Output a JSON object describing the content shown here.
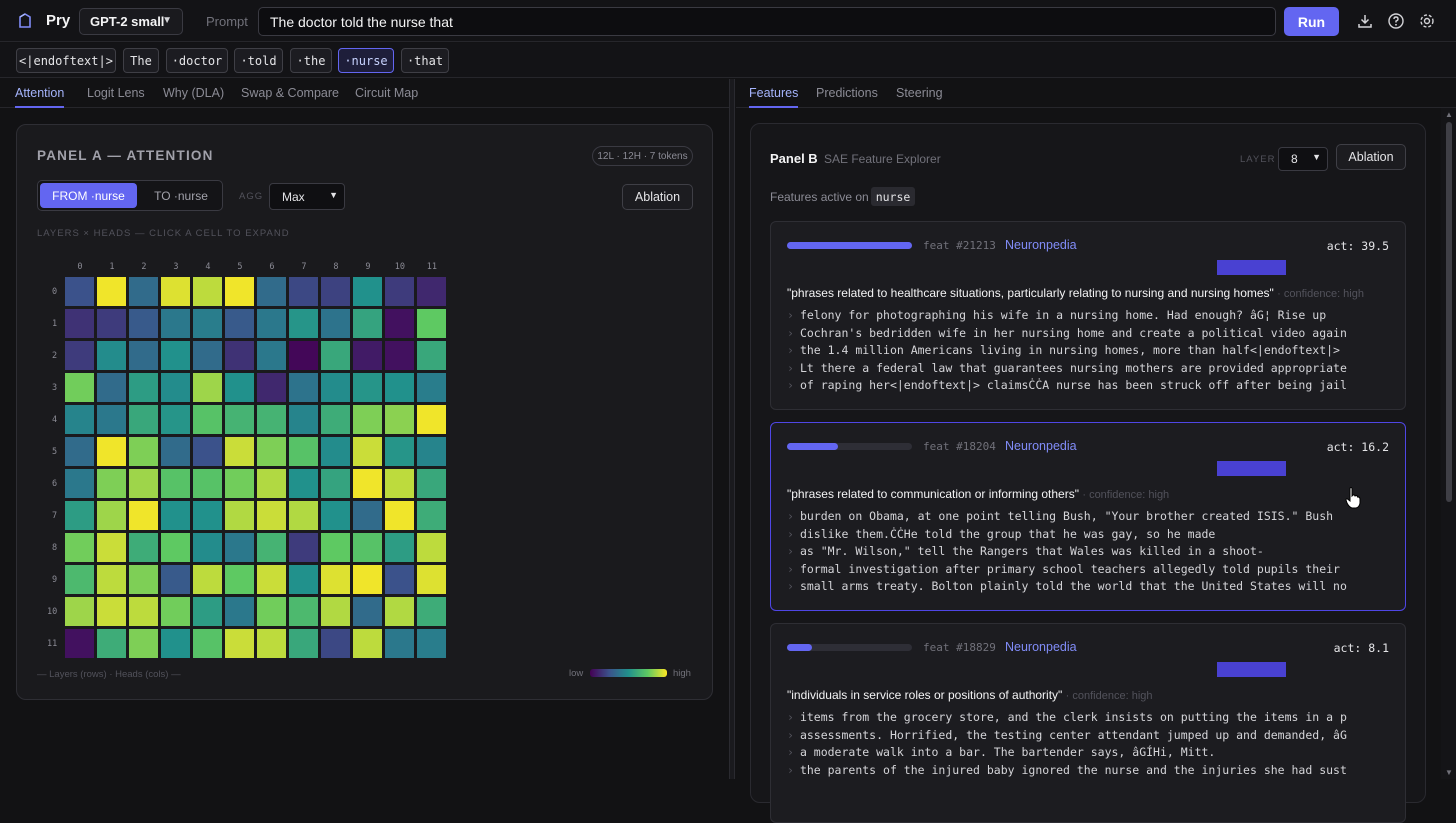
{
  "app": {
    "name": "Pry"
  },
  "topbar": {
    "model": "GPT-2 small",
    "prompt_label": "Prompt",
    "prompt_value": "The doctor told the nurse that",
    "run_label": "Run",
    "icons": [
      "download-icon",
      "help-icon",
      "settings-icon"
    ]
  },
  "tokens": [
    "<|endoftext|>",
    "The",
    "·doctor",
    "·told",
    "·the",
    "·nurse",
    "·that"
  ],
  "selected_token": "·nurse",
  "left_tabs": [
    "Attention",
    "Logit Lens",
    "Why (DLA)",
    "Swap & Compare",
    "Circuit Map"
  ],
  "right_tabs": [
    "Features",
    "Predictions",
    "Steering"
  ],
  "panel_a": {
    "title": "PANEL A — ATTENTION",
    "badge": "12L · 12H · 7 tokens",
    "from_label": "FROM ·nurse",
    "to_label": "TO ·nurse",
    "agg_label": "AGG",
    "agg_value": "Max",
    "ablation_label": "Ablation",
    "hint": "LAYERS × HEADS — CLICK A CELL TO EXPAND",
    "col_labels": [
      "0",
      "1",
      "2",
      "3",
      "4",
      "5",
      "6",
      "7",
      "8",
      "9",
      "10",
      "11"
    ],
    "row_labels": [
      "0",
      "1",
      "2",
      "3",
      "4",
      "5",
      "6",
      "7",
      "8",
      "9",
      "10",
      "11"
    ],
    "legend_axes": "— Layers (rows) · Heads (cols) —",
    "legend_low": "low",
    "legend_high": "high",
    "matrix": [
      [
        0.25,
        0.98,
        0.35,
        0.95,
        0.9,
        0.98,
        0.35,
        0.22,
        0.2,
        0.5,
        0.18,
        0.12
      ],
      [
        0.15,
        0.18,
        0.28,
        0.4,
        0.42,
        0.28,
        0.4,
        0.52,
        0.38,
        0.58,
        0.05,
        0.75
      ],
      [
        0.18,
        0.48,
        0.35,
        0.5,
        0.35,
        0.15,
        0.4,
        0.02,
        0.6,
        0.08,
        0.05,
        0.6
      ],
      [
        0.78,
        0.35,
        0.55,
        0.48,
        0.85,
        0.5,
        0.12,
        0.38,
        0.48,
        0.52,
        0.5,
        0.42
      ],
      [
        0.45,
        0.4,
        0.6,
        0.52,
        0.72,
        0.65,
        0.65,
        0.45,
        0.62,
        0.8,
        0.82,
        0.98
      ],
      [
        0.35,
        0.98,
        0.8,
        0.35,
        0.25,
        0.92,
        0.8,
        0.72,
        0.48,
        0.92,
        0.52,
        0.45
      ],
      [
        0.4,
        0.8,
        0.85,
        0.72,
        0.72,
        0.78,
        0.88,
        0.5,
        0.58,
        0.98,
        0.9,
        0.6
      ],
      [
        0.55,
        0.85,
        0.98,
        0.5,
        0.5,
        0.88,
        0.92,
        0.88,
        0.5,
        0.35,
        0.98,
        0.62
      ],
      [
        0.78,
        0.92,
        0.62,
        0.75,
        0.48,
        0.4,
        0.65,
        0.18,
        0.75,
        0.72,
        0.55,
        0.9
      ],
      [
        0.68,
        0.9,
        0.8,
        0.28,
        0.9,
        0.75,
        0.92,
        0.5,
        0.95,
        0.98,
        0.25,
        0.95
      ],
      [
        0.85,
        0.92,
        0.9,
        0.78,
        0.55,
        0.4,
        0.78,
        0.68,
        0.88,
        0.35,
        0.88,
        0.62
      ],
      [
        0.05,
        0.62,
        0.8,
        0.5,
        0.72,
        0.92,
        0.9,
        0.6,
        0.22,
        0.9,
        0.4,
        0.42
      ]
    ]
  },
  "panel_b": {
    "title": "Panel B",
    "subtitle": "SAE Feature Explorer",
    "layer_label": "LAYER",
    "layer_value": "8",
    "ablation_label": "Ablation",
    "active_on_label": "Features active on",
    "active_token": "nurse",
    "features": [
      {
        "id": "feat #21213",
        "link": "Neuronpedia",
        "act": "act: 39.5",
        "act_fraction": 1.0,
        "desc": "\"phrases related to healthcare situations, particularly relating to nursing and nursing homes\"",
        "confidence": "· confidence: high",
        "examples": [
          "felony for photographing his wife in a nursing home. Had enough? âG¦ Rise up",
          "Cochran's bedridden wife in her nursing home and create a political video again",
          "the 1.4 million Americans living in nursing homes, more than half<|endoftext|>",
          "Lt there a federal law that guarantees nursing mothers are provided appropriate",
          "of raping her<|endoftext|> claimsĊĊA nurse has been struck off after being jail"
        ]
      },
      {
        "id": "feat #18204",
        "link": "Neuronpedia",
        "act": "act: 16.2",
        "act_fraction": 0.41,
        "desc": "\"phrases related to communication or informing others\"",
        "confidence": "· confidence: high",
        "examples": [
          "burden on Obama, at one point telling Bush, \"Your brother created ISIS.\" Bush",
          "dislike them.ĊĊHe told the group that he was gay, so he made",
          "as \"Mr. Wilson,\" tell the Rangers that Wales was killed in a shoot-",
          "formal investigation after primary school teachers allegedly told pupils their",
          "small arms treaty. Bolton plainly told the world that the United States will no"
        ]
      },
      {
        "id": "feat #18829",
        "link": "Neuronpedia",
        "act": "act: 8.1",
        "act_fraction": 0.2,
        "desc": "\"individuals in service roles or positions of authority\"",
        "confidence": "· confidence: high",
        "examples": [
          "items from the grocery store, and the clerk insists on putting the items in a p",
          "assessments. Horrified, the testing center attendant jumped up and demanded, âG",
          "a moderate walk into a bar. The bartender says, âGÍHi, Mitt.",
          "the parents of the injured baby ignored the nurse and the injuries she had sust"
        ]
      }
    ]
  },
  "colors": {
    "accent": "#6366f1",
    "link": "#818cf8",
    "bg": "#121214"
  }
}
